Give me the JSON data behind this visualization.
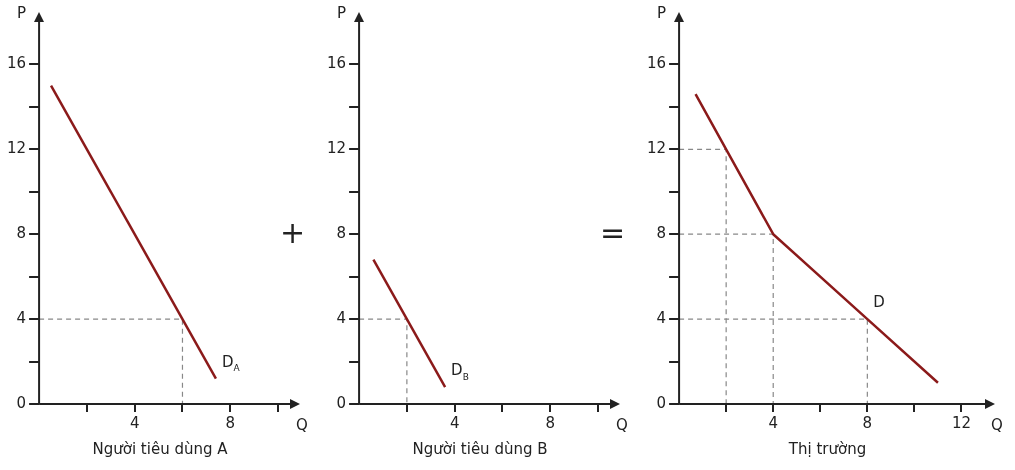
{
  "chart_data": [
    {
      "type": "line",
      "title": "Người tiêu dùng A",
      "xlabel": "Q",
      "ylabel": "P",
      "xlim": [
        0,
        10.5
      ],
      "ylim": [
        0,
        18
      ],
      "xticks": [
        {
          "value": 2,
          "label": null
        },
        4,
        {
          "value": 6,
          "label": null
        },
        8,
        {
          "value": 10,
          "label": null
        }
      ],
      "yticks": [
        0,
        {
          "value": 2,
          "label": null
        },
        4,
        {
          "value": 6,
          "label": null
        },
        8,
        {
          "value": 10,
          "label": null
        },
        12,
        {
          "value": 14,
          "label": null
        },
        16
      ],
      "grid": false,
      "legend": false,
      "marker": "none",
      "series": [
        {
          "color": "#8b1a1a",
          "x": [
            0.5,
            7.4
          ],
          "values": [
            15,
            1.2
          ]
        },
        {
          "color": "#888888",
          "line_style": "dashed",
          "x": [
            0,
            6,
            6
          ],
          "values": [
            4,
            4,
            0
          ]
        }
      ],
      "annotations": [
        {
          "text": "D$_{A}$",
          "x": 7.4,
          "y": 1.2
        },
        "+"
      ]
    },
    {
      "type": "line",
      "title": "Người tiêu dùng B",
      "xlabel": "Q",
      "ylabel": "P",
      "xlim": [
        0,
        10.5
      ],
      "ylim": [
        0,
        18
      ],
      "xticks": [
        {
          "value": 2,
          "label": null
        },
        4,
        {
          "value": 6,
          "label": null
        },
        8,
        {
          "value": 10,
          "label": null
        }
      ],
      "yticks": [
        0,
        {
          "value": 2,
          "label": null
        },
        4,
        {
          "value": 6,
          "label": null
        },
        8,
        {
          "value": 10,
          "label": null
        },
        12,
        {
          "value": 14,
          "label": null
        },
        16
      ],
      "grid": false,
      "legend": false,
      "marker": "none",
      "series": [
        {
          "color": "#8b1a1a",
          "x": [
            0.6,
            3.6
          ],
          "values": [
            6.8,
            0.8
          ]
        },
        {
          "color": "#888888",
          "line_style": "dashed",
          "x": [
            0,
            2,
            2
          ],
          "values": [
            4,
            4,
            0
          ]
        }
      ],
      "annotations": [
        {
          "text": "D$_{B}$",
          "x": 3.6,
          "y": 0.8
        },
        "="
      ]
    },
    {
      "type": "line",
      "title": "Thị trường",
      "xlabel": "Q",
      "ylabel": "P",
      "xlim": [
        0,
        13
      ],
      "ylim": [
        0,
        18
      ],
      "xticks": [
        {
          "value": 2,
          "label": null
        },
        4,
        {
          "value": 6,
          "label": null
        },
        8,
        {
          "value": 10,
          "label": null
        },
        12
      ],
      "yticks": [
        0,
        {
          "value": 2,
          "label": null
        },
        4,
        {
          "value": 6,
          "label": null
        },
        8,
        {
          "value": 10,
          "label": null
        },
        12,
        {
          "value": 14,
          "label": null
        },
        16
      ],
      "grid": false,
      "legend": false,
      "marker": "none",
      "series": [
        {
          "color": "#8b1a1a",
          "x": [
            0.7,
            2,
            4,
            8,
            11
          ],
          "values": [
            14.6,
            12,
            8,
            4,
            1
          ]
        },
        {
          "color": "#888888",
          "line_style": "dashed",
          "x": [
            0,
            2,
            2
          ],
          "values": [
            12,
            12,
            0
          ]
        },
        {
          "color": "#888888",
          "line_style": "dashed",
          "x": [
            0,
            4,
            4
          ],
          "values": [
            8,
            8,
            0
          ]
        },
        {
          "color": "#888888",
          "line_style": "dashed",
          "x": [
            0,
            8,
            8
          ],
          "values": [
            4,
            4,
            0
          ]
        }
      ],
      "annotations": [
        {
          "text": "D",
          "x": 8,
          "y": 4
        }
      ]
    }
  ]
}
